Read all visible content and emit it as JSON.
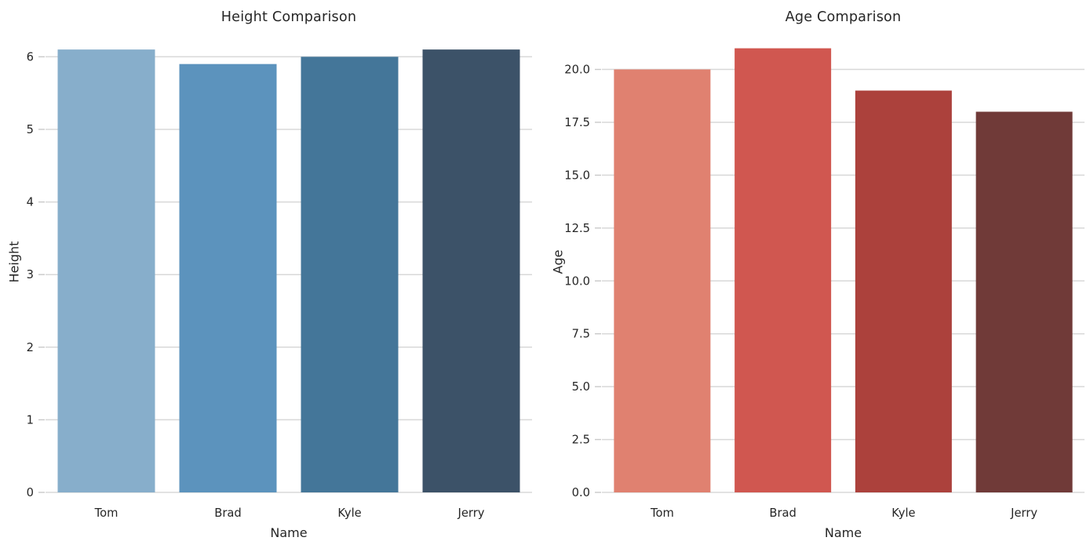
{
  "style": {
    "background": "#ffffff",
    "grid_color": "#d8d8d8",
    "tick_mark_color": "#c9c9c9",
    "text_color": "#262626"
  },
  "chart_data": [
    {
      "type": "bar",
      "title": "Height Comparison",
      "xlabel": "Name",
      "ylabel": "Height",
      "categories": [
        "Tom",
        "Brad",
        "Kyle",
        "Jerry"
      ],
      "values": [
        6.1,
        5.9,
        6.0,
        6.1
      ],
      "bar_colors": [
        "#87AECB",
        "#5C93BD",
        "#447699",
        "#3C5268"
      ],
      "ylim": [
        0,
        6.35
      ],
      "ytick_values": [
        0,
        1,
        2,
        3,
        4,
        5,
        6
      ],
      "ytick_labels": [
        "0",
        "1",
        "2",
        "3",
        "4",
        "5",
        "6"
      ],
      "grid": true,
      "legend": "none"
    },
    {
      "type": "bar",
      "title": "Age Comparison",
      "xlabel": "Name",
      "ylabel": "Age",
      "categories": [
        "Tom",
        "Brad",
        "Kyle",
        "Jerry"
      ],
      "values": [
        20,
        21,
        19,
        18
      ],
      "bar_colors": [
        "#E08170",
        "#D05750",
        "#AC413C",
        "#703A38"
      ],
      "ylim": [
        0,
        21.8
      ],
      "ytick_values": [
        0,
        2.5,
        5,
        7.5,
        10,
        12.5,
        15,
        17.5,
        20
      ],
      "ytick_labels": [
        "0.0",
        "2.5",
        "5.0",
        "7.5",
        "10.0",
        "12.5",
        "15.0",
        "17.5",
        "20.0"
      ],
      "grid": true,
      "legend": "none"
    }
  ]
}
